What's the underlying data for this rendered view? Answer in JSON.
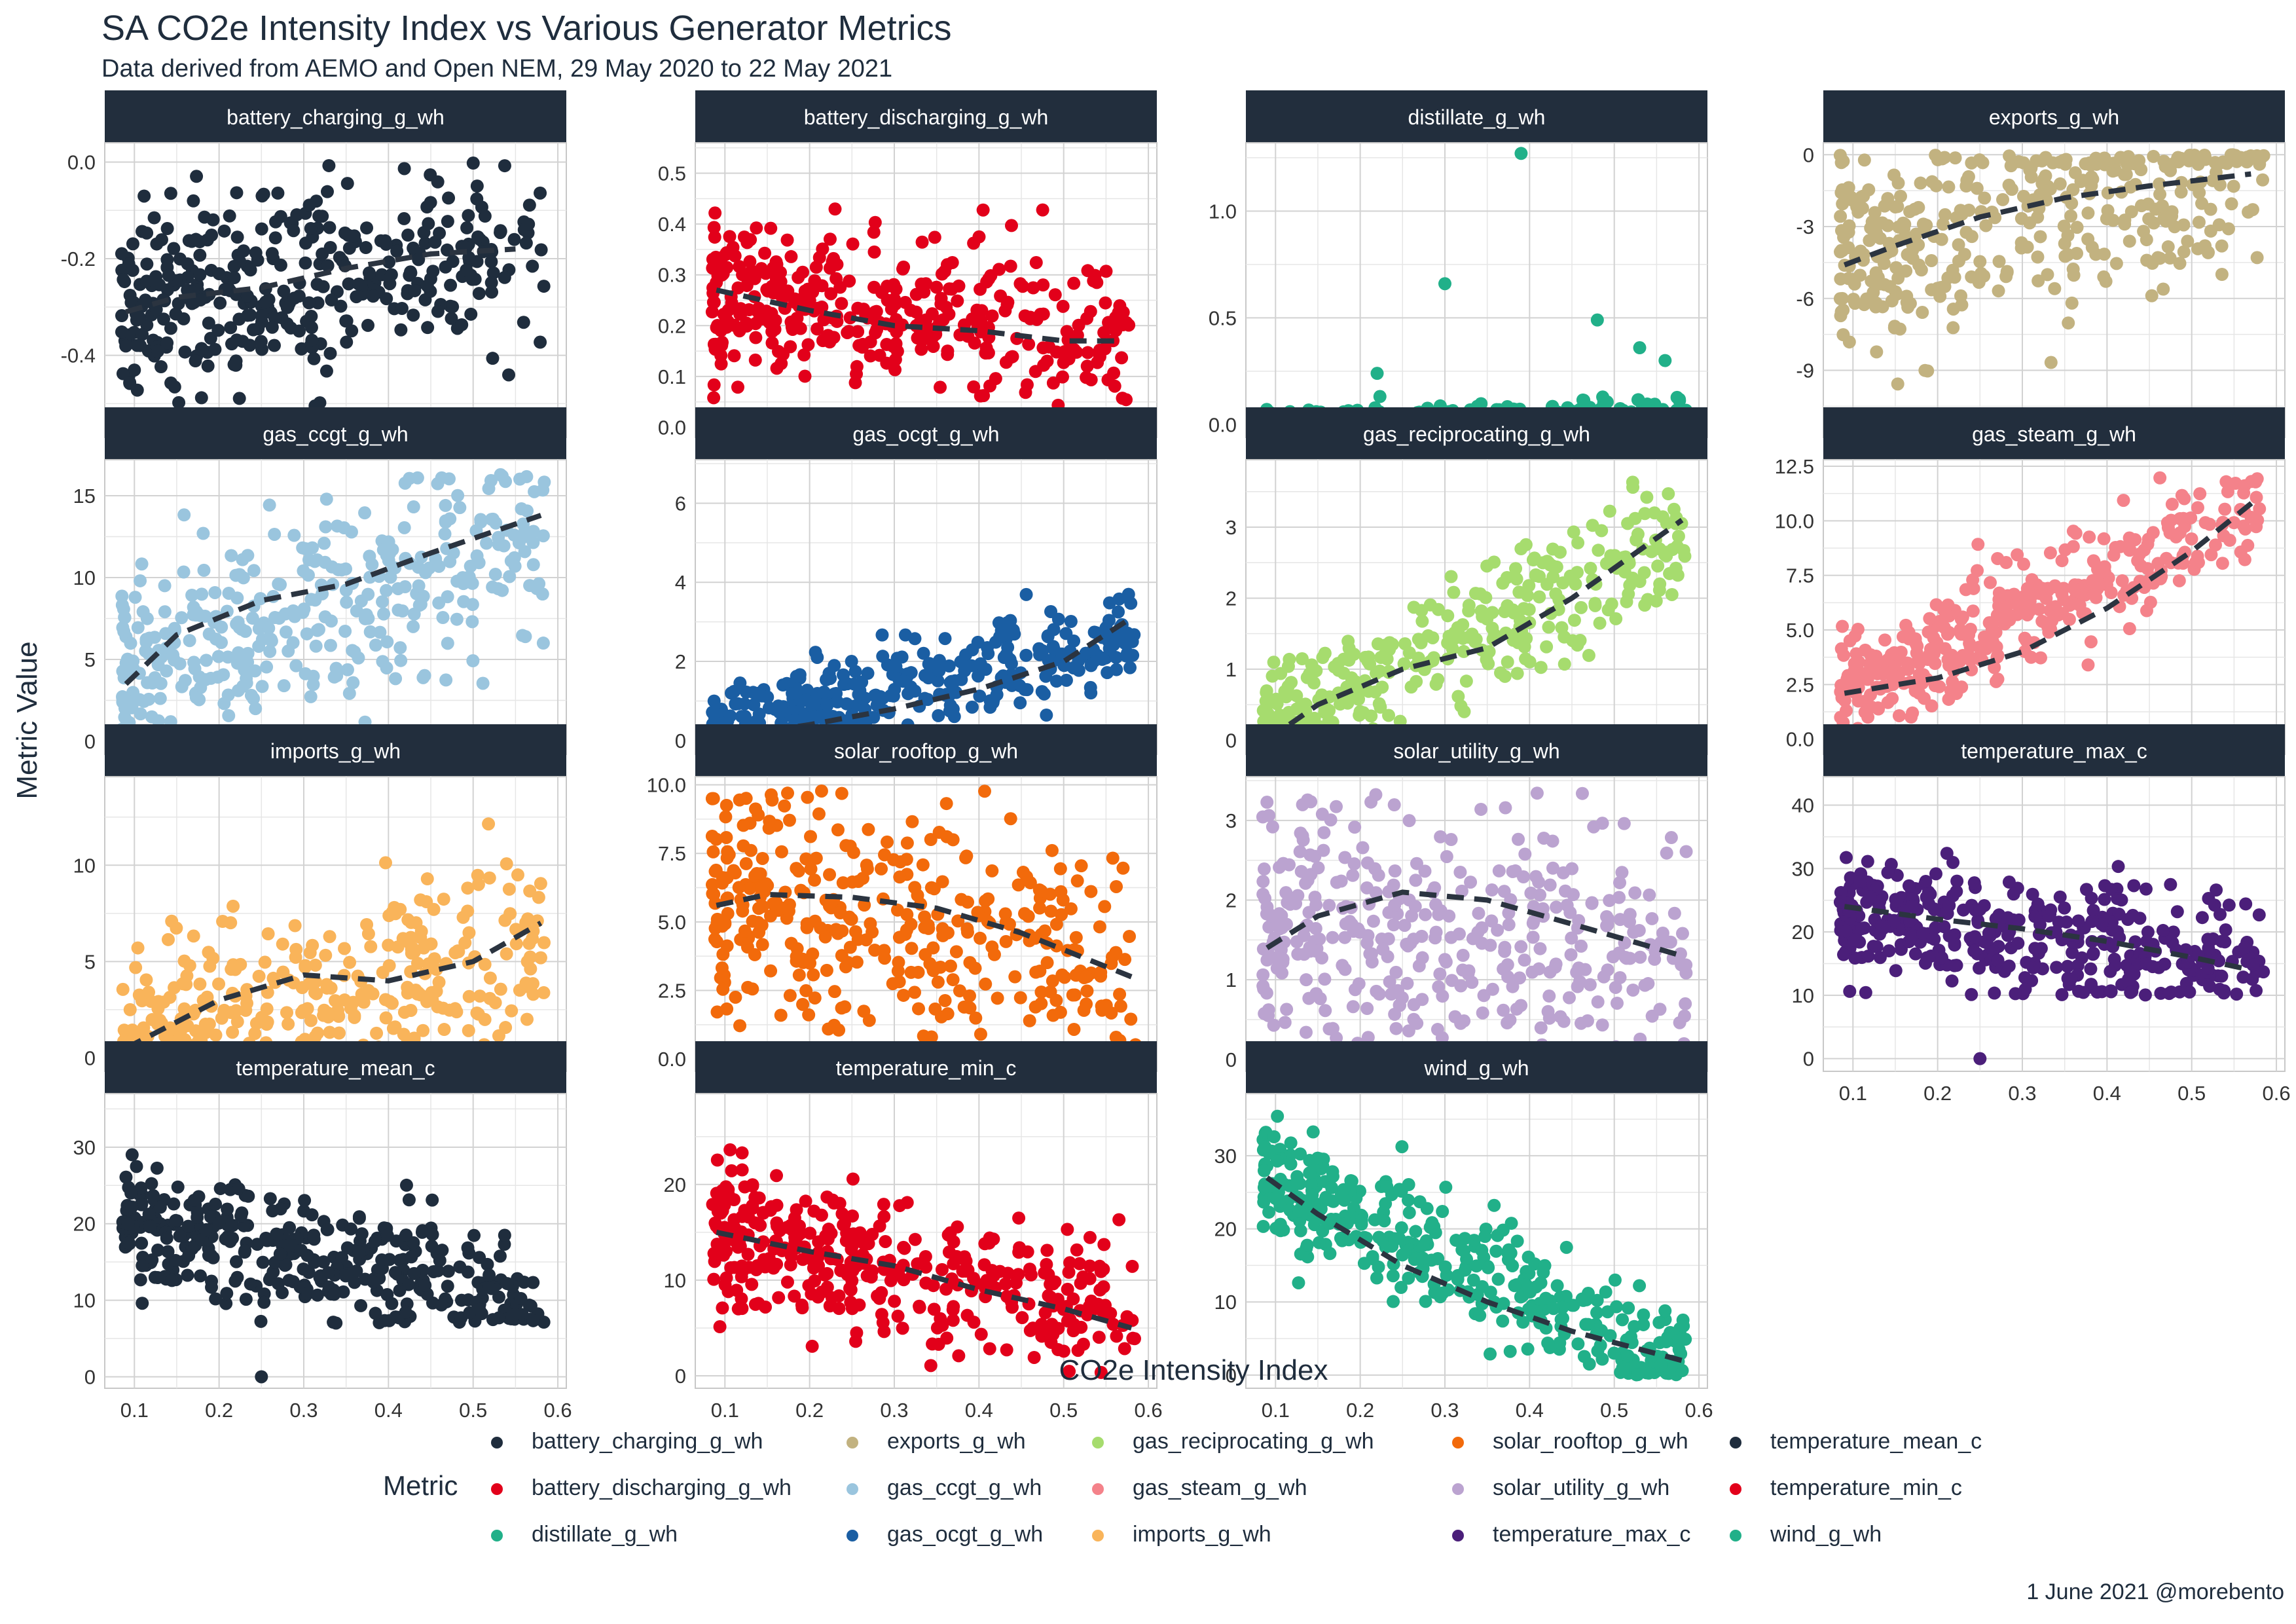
{
  "title": "SA CO2e Intensity Index vs Various Generator Metrics",
  "subtitle": "Data derived from AEMO and Open NEM, 29 May 2020 to 22 May 2021",
  "caption": "1 June 2021 @morebento",
  "legend_title": "Metric",
  "chart_data": {
    "type": "scatter",
    "facet_layout": "4 columns, free y scales",
    "xlabel": "CO2e Intensity Index",
    "ylabel": "Metric Value",
    "x_ticks": [
      0.1,
      0.2,
      0.3,
      0.4,
      0.5,
      0.6
    ],
    "xlim": [
      0.065,
      0.61
    ],
    "x_range": [
      0.085,
      0.585
    ],
    "trend_line": "dashed smoothed fit, color #2b3440",
    "grid": true,
    "legend_position": "bottom",
    "facets": [
      {
        "name": "battery_charging_g_wh",
        "color": "#1f2d3d",
        "ylim": [
          -0.57,
          0.04
        ],
        "y_ticks": [
          0.0,
          -0.2,
          -0.4
        ],
        "y_tick_labels": [
          "0.0",
          "-0.2",
          "-0.4"
        ],
        "trend": [
          [
            0.09,
            -0.31
          ],
          [
            0.15,
            -0.28
          ],
          [
            0.25,
            -0.26
          ],
          [
            0.35,
            -0.22
          ],
          [
            0.45,
            -0.19
          ],
          [
            0.55,
            -0.18
          ]
        ],
        "y_center": [
          [
            0.09,
            -0.31
          ],
          [
            0.55,
            -0.18
          ]
        ],
        "y_spread": 0.1,
        "y_bounds": [
          -0.55,
          0.0
        ],
        "n_points": 380
      },
      {
        "name": "battery_discharging_g_wh",
        "color": "#e2001a",
        "ylim": [
          -0.02,
          0.56
        ],
        "y_ticks": [
          0.0,
          0.1,
          0.2,
          0.3,
          0.4,
          0.5
        ],
        "y_tick_labels": [
          "0.0",
          "0.1",
          "0.2",
          "0.3",
          "0.4",
          "0.5"
        ],
        "trend": [
          [
            0.09,
            0.27
          ],
          [
            0.2,
            0.23
          ],
          [
            0.3,
            0.2
          ],
          [
            0.4,
            0.19
          ],
          [
            0.5,
            0.17
          ],
          [
            0.57,
            0.17
          ]
        ],
        "y_center": [
          [
            0.09,
            0.26
          ],
          [
            0.57,
            0.17
          ]
        ],
        "y_spread": 0.08,
        "y_bounds": [
          0.0,
          0.52
        ],
        "n_points": 380
      },
      {
        "name": "distillate_g_wh",
        "color": "#21b089",
        "ylim": [
          -0.06,
          1.32
        ],
        "y_ticks": [
          0.0,
          0.5,
          1.0
        ],
        "y_tick_labels": [
          "0.0",
          "0.5",
          "1.0"
        ],
        "trend": [
          [
            0.09,
            0.0
          ],
          [
            0.2,
            0.01
          ],
          [
            0.3,
            0.03
          ],
          [
            0.4,
            0.04
          ],
          [
            0.5,
            0.06
          ],
          [
            0.57,
            0.07
          ]
        ],
        "y_center": [
          [
            0.09,
            0.0
          ],
          [
            0.57,
            0.05
          ]
        ],
        "y_spread": 0.04,
        "y_bounds": [
          0.0,
          1.27
        ],
        "n_points": 380,
        "outliers": [
          [
            0.39,
            1.27
          ],
          [
            0.3,
            0.66
          ],
          [
            0.48,
            0.49
          ],
          [
            0.53,
            0.36
          ],
          [
            0.56,
            0.3
          ],
          [
            0.22,
            0.24
          ]
        ]
      },
      {
        "name": "exports_g_wh",
        "color": "#c2b280",
        "ylim": [
          -11.8,
          0.5
        ],
        "y_ticks": [
          0,
          -3,
          -6,
          -9
        ],
        "y_tick_labels": [
          "0",
          "-3",
          "-6",
          "-9"
        ],
        "trend": [
          [
            0.09,
            -4.6
          ],
          [
            0.15,
            -3.8
          ],
          [
            0.25,
            -2.6
          ],
          [
            0.35,
            -1.8
          ],
          [
            0.45,
            -1.3
          ],
          [
            0.57,
            -0.8
          ]
        ],
        "y_center": [
          [
            0.09,
            -4.0
          ],
          [
            0.57,
            -0.7
          ]
        ],
        "y_spread": 2.2,
        "y_bounds": [
          -11.0,
          0.0
        ],
        "n_points": 380
      },
      {
        "name": "gas_ccgt_g_wh",
        "color": "#9ac5de",
        "ylim": [
          -0.8,
          17.2
        ],
        "y_ticks": [
          0,
          5,
          10,
          15
        ],
        "y_tick_labels": [
          "0",
          "5",
          "10",
          "15"
        ],
        "trend": [
          [
            0.09,
            3.5
          ],
          [
            0.15,
            6.5
          ],
          [
            0.25,
            8.6
          ],
          [
            0.35,
            9.6
          ],
          [
            0.45,
            11.5
          ],
          [
            0.58,
            13.8
          ]
        ],
        "y_center": [
          [
            0.09,
            4.0
          ],
          [
            0.58,
            12.5
          ]
        ],
        "y_spread": 3.0,
        "y_bounds": [
          0.0,
          16.3
        ],
        "n_points": 380
      },
      {
        "name": "gas_ocgt_g_wh",
        "color": "#1a5ea3",
        "ylim": [
          -0.35,
          7.1
        ],
        "y_ticks": [
          0,
          2,
          4,
          6
        ],
        "y_tick_labels": [
          "0",
          "2",
          "4",
          "6"
        ],
        "trend": [
          [
            0.09,
            0.05
          ],
          [
            0.2,
            0.4
          ],
          [
            0.3,
            0.8
          ],
          [
            0.4,
            1.3
          ],
          [
            0.5,
            2.0
          ],
          [
            0.58,
            3.1
          ]
        ],
        "y_center": [
          [
            0.09,
            0.1
          ],
          [
            0.58,
            2.6
          ]
        ],
        "y_spread": 0.6,
        "y_bounds": [
          0.0,
          6.8
        ],
        "n_points": 380
      },
      {
        "name": "gas_reciprocating_g_wh",
        "color": "#a6dc6e",
        "ylim": [
          -0.2,
          3.95
        ],
        "y_ticks": [
          0,
          1,
          2,
          3
        ],
        "y_tick_labels": [
          "0",
          "1",
          "2",
          "3"
        ],
        "trend": [
          [
            0.09,
            0.0
          ],
          [
            0.15,
            0.5
          ],
          [
            0.25,
            1.0
          ],
          [
            0.35,
            1.3
          ],
          [
            0.45,
            2.0
          ],
          [
            0.58,
            3.1
          ]
        ],
        "y_center": [
          [
            0.09,
            0.1
          ],
          [
            0.58,
            2.9
          ]
        ],
        "y_spread": 0.5,
        "y_bounds": [
          0.0,
          3.8
        ],
        "n_points": 380
      },
      {
        "name": "gas_steam_g_wh",
        "color": "#f4828a",
        "ylim": [
          -0.7,
          12.8
        ],
        "y_ticks": [
          0.0,
          2.5,
          5.0,
          7.5,
          10.0,
          12.5
        ],
        "y_tick_labels": [
          "0.0",
          "2.5",
          "5.0",
          "7.5",
          "10.0",
          "12.5"
        ],
        "trend": [
          [
            0.09,
            2.1
          ],
          [
            0.2,
            2.8
          ],
          [
            0.3,
            4.0
          ],
          [
            0.4,
            6.0
          ],
          [
            0.5,
            8.6
          ],
          [
            0.58,
            11.1
          ]
        ],
        "y_center": [
          [
            0.09,
            2.0
          ],
          [
            0.58,
            10.5
          ]
        ],
        "y_spread": 1.3,
        "y_bounds": [
          0.0,
          12.0
        ],
        "n_points": 380
      },
      {
        "name": "imports_g_wh",
        "color": "#f9b45a",
        "ylim": [
          -0.7,
          14.6
        ],
        "y_ticks": [
          0,
          5,
          10
        ],
        "y_tick_labels": [
          "0",
          "5",
          "10"
        ],
        "trend": [
          [
            0.09,
            0.5
          ],
          [
            0.2,
            3.0
          ],
          [
            0.3,
            4.3
          ],
          [
            0.4,
            4.0
          ],
          [
            0.5,
            5.0
          ],
          [
            0.58,
            7.0
          ]
        ],
        "y_center": [
          [
            0.09,
            1.0
          ],
          [
            0.58,
            5.0
          ]
        ],
        "y_spread": 2.6,
        "y_bounds": [
          0.0,
          14.0
        ],
        "n_points": 380
      },
      {
        "name": "solar_rooftop_g_wh",
        "color": "#f26a0b",
        "ylim": [
          -0.45,
          10.3
        ],
        "y_ticks": [
          0.0,
          2.5,
          5.0,
          7.5,
          10.0
        ],
        "y_tick_labels": [
          "0.0",
          "2.5",
          "5.0",
          "7.5",
          "10.0"
        ],
        "trend": [
          [
            0.09,
            5.6
          ],
          [
            0.15,
            6.0
          ],
          [
            0.25,
            5.9
          ],
          [
            0.35,
            5.5
          ],
          [
            0.45,
            4.6
          ],
          [
            0.58,
            3.0
          ]
        ],
        "y_center": [
          [
            0.09,
            5.8
          ],
          [
            0.58,
            3.5
          ]
        ],
        "y_spread": 2.2,
        "y_bounds": [
          0.0,
          9.8
        ],
        "n_points": 380
      },
      {
        "name": "solar_utility_g_wh",
        "color": "#bba3d0",
        "ylim": [
          -0.15,
          3.55
        ],
        "y_ticks": [
          0,
          1,
          2,
          3
        ],
        "y_tick_labels": [
          "0",
          "1",
          "2",
          "3"
        ],
        "trend": [
          [
            0.09,
            1.4
          ],
          [
            0.15,
            1.8
          ],
          [
            0.25,
            2.1
          ],
          [
            0.35,
            2.0
          ],
          [
            0.45,
            1.7
          ],
          [
            0.58,
            1.3
          ]
        ],
        "y_center": [
          [
            0.09,
            1.6
          ],
          [
            0.58,
            1.3
          ]
        ],
        "y_spread": 0.8,
        "y_bounds": [
          0.0,
          3.35
        ],
        "n_points": 380
      },
      {
        "name": "temperature_max_c",
        "color": "#4b1f7a",
        "ylim": [
          -2.0,
          44.5
        ],
        "y_ticks": [
          0,
          10,
          20,
          30,
          40
        ],
        "y_tick_labels": [
          "0",
          "10",
          "20",
          "30",
          "40"
        ],
        "trend": [
          [
            0.09,
            24.0
          ],
          [
            0.2,
            22.0
          ],
          [
            0.3,
            20.5
          ],
          [
            0.4,
            18.5
          ],
          [
            0.5,
            16.0
          ],
          [
            0.57,
            14.0
          ]
        ],
        "y_center": [
          [
            0.09,
            23.0
          ],
          [
            0.57,
            15.0
          ]
        ],
        "y_spread": 5.0,
        "y_bounds": [
          10.0,
          42.0
        ],
        "n_points": 380,
        "outliers": [
          [
            0.25,
            0.0
          ]
        ]
      },
      {
        "name": "temperature_mean_c",
        "color": "#1f2d3d",
        "ylim": [
          -1.5,
          37.0
        ],
        "y_ticks": [
          0,
          10,
          20,
          30
        ],
        "y_tick_labels": [
          "0",
          "10",
          "20",
          "30"
        ],
        "trend": [],
        "y_center": [
          [
            0.09,
            20.0
          ],
          [
            0.58,
            10.0
          ]
        ],
        "y_spread": 4.0,
        "y_bounds": [
          7.0,
          35.0
        ],
        "n_points": 380,
        "outliers": [
          [
            0.25,
            0.0
          ]
        ]
      },
      {
        "name": "temperature_min_c",
        "color": "#e2001a",
        "ylim": [
          -1.3,
          29.5
        ],
        "y_ticks": [
          0,
          10,
          20
        ],
        "y_tick_labels": [
          "0",
          "10",
          "20"
        ],
        "trend": [
          [
            0.09,
            15.0
          ],
          [
            0.2,
            13.0
          ],
          [
            0.3,
            11.5
          ],
          [
            0.4,
            9.0
          ],
          [
            0.5,
            7.0
          ],
          [
            0.58,
            5.0
          ]
        ],
        "y_center": [
          [
            0.09,
            15.0
          ],
          [
            0.58,
            6.0
          ]
        ],
        "y_spread": 3.5,
        "y_bounds": [
          0.0,
          28.0
        ],
        "n_points": 380
      },
      {
        "name": "wind_g_wh",
        "color": "#21b089",
        "ylim": [
          -1.8,
          38.5
        ],
        "y_ticks": [
          0,
          10,
          20,
          30
        ],
        "y_tick_labels": [
          "0",
          "10",
          "20",
          "30"
        ],
        "trend": [
          [
            0.09,
            27.0
          ],
          [
            0.15,
            22.0
          ],
          [
            0.25,
            15.0
          ],
          [
            0.35,
            10.0
          ],
          [
            0.45,
            6.0
          ],
          [
            0.58,
            2.0
          ]
        ],
        "y_center": [
          [
            0.09,
            27.0
          ],
          [
            0.58,
            2.0
          ]
        ],
        "y_spread": 4.0,
        "y_bounds": [
          0.0,
          36.0
        ],
        "n_points": 380
      }
    ]
  },
  "legend": [
    {
      "label": "battery_charging_g_wh",
      "color": "#1f2d3d"
    },
    {
      "label": "battery_discharging_g_wh",
      "color": "#e2001a"
    },
    {
      "label": "distillate_g_wh",
      "color": "#21b089"
    },
    {
      "label": "exports_g_wh",
      "color": "#c2b280"
    },
    {
      "label": "gas_ccgt_g_wh",
      "color": "#9ac5de"
    },
    {
      "label": "gas_ocgt_g_wh",
      "color": "#1a5ea3"
    },
    {
      "label": "gas_reciprocating_g_wh",
      "color": "#a6dc6e"
    },
    {
      "label": "gas_steam_g_wh",
      "color": "#f4828a"
    },
    {
      "label": "imports_g_wh",
      "color": "#f9b45a"
    },
    {
      "label": "solar_rooftop_g_wh",
      "color": "#f26a0b"
    },
    {
      "label": "solar_utility_g_wh",
      "color": "#bba3d0"
    },
    {
      "label": "temperature_max_c",
      "color": "#4b1f7a"
    },
    {
      "label": "temperature_mean_c",
      "color": "#1f2d3d"
    },
    {
      "label": "temperature_min_c",
      "color": "#e2001a"
    },
    {
      "label": "wind_g_wh",
      "color": "#21b089"
    }
  ]
}
